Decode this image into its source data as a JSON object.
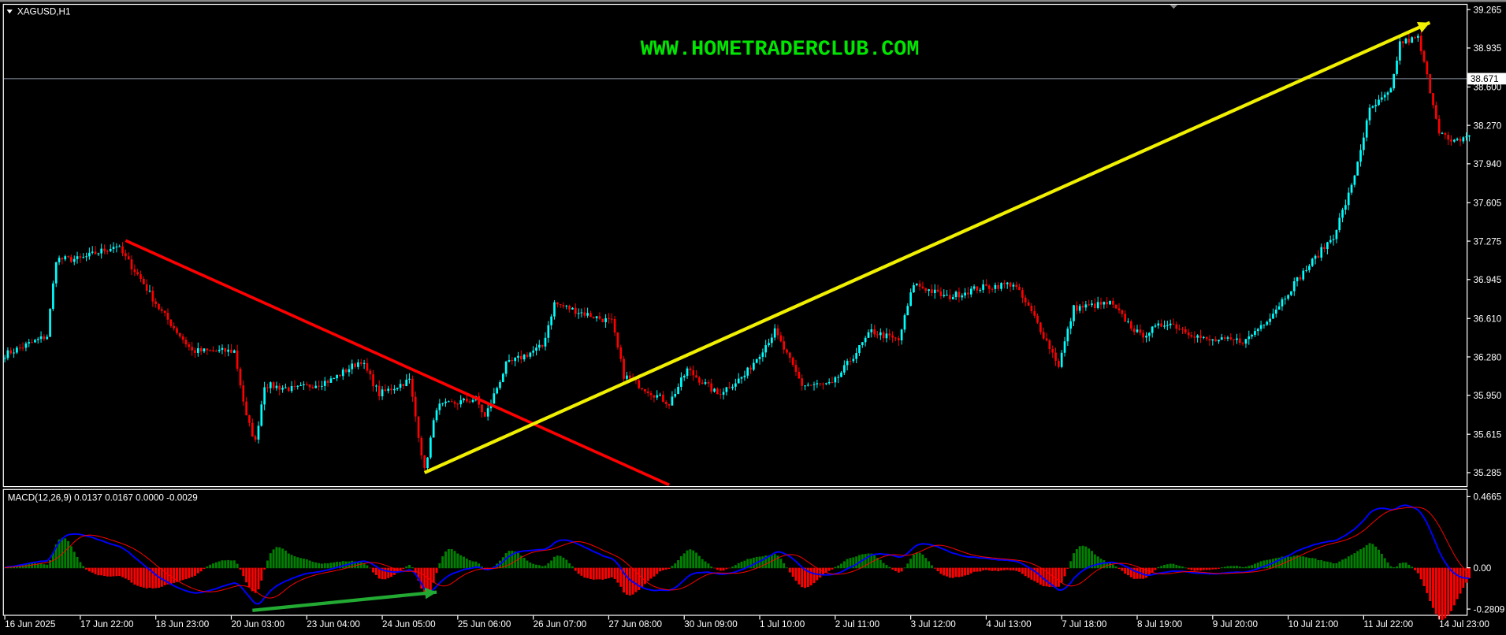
{
  "symbol_label": "XAGUSD,H1",
  "watermark": "WWW.HOMETRADERCLUB.COM",
  "current_price_label": "38.671",
  "macd_label": "MACD(12,26,9) 0.0137 0.0167 0.0000 -0.0029",
  "colors": {
    "background": "#000000",
    "bull": "#00ffff",
    "bear": "#ff0000",
    "macd_line": "#0000ff",
    "signal_line": "#ff0000",
    "hist_pos": "#008000",
    "hist_neg": "#ff0000",
    "downtrend": "#ff0000",
    "uptrend": "#f0f000",
    "macd_arrow": "#22aa33",
    "watermark": "#00e600"
  },
  "chart_data": [
    {
      "type": "candlestick",
      "title": "XAGUSD,H1",
      "ylim": [
        35.285,
        39.265
      ],
      "y_ticks": [
        "39.265",
        "38.935",
        "38.600",
        "38.270",
        "37.940",
        "37.605",
        "37.275",
        "36.945",
        "36.610",
        "36.280",
        "35.950",
        "35.615",
        "35.285"
      ],
      "x_ticks": [
        "16 Jun 2025",
        "17 Jun 22:00",
        "18 Jun 23:00",
        "20 Jun 03:00",
        "23 Jun 04:00",
        "24 Jun 05:00",
        "25 Jun 06:00",
        "26 Jun 07:00",
        "27 Jun 08:00",
        "30 Jun 09:00",
        "1 Jul 10:00",
        "2 Jul 11:00",
        "3 Jul 12:00",
        "4 Jul 13:00",
        "7 Jul 18:00",
        "8 Jul 19:00",
        "9 Jul 20:00",
        "10 Jul 21:00",
        "11 Jul 22:00",
        "14 Jul 23:00"
      ],
      "bars_per_tick": 25,
      "current_price": 38.671,
      "close_path": [
        [
          0,
          36.3
        ],
        [
          14,
          36.46
        ],
        [
          17,
          37.12
        ],
        [
          25,
          37.12
        ],
        [
          37,
          37.24
        ],
        [
          45,
          36.95
        ],
        [
          51,
          36.7
        ],
        [
          62,
          36.33
        ],
        [
          76,
          36.33
        ],
        [
          80,
          35.76
        ],
        [
          83,
          35.55
        ],
        [
          86,
          36.04
        ],
        [
          96,
          36.0
        ],
        [
          108,
          36.08
        ],
        [
          118,
          36.25
        ],
        [
          124,
          35.96
        ],
        [
          134,
          36.08
        ],
        [
          139,
          35.3
        ],
        [
          143,
          35.85
        ],
        [
          156,
          35.92
        ],
        [
          159,
          35.76
        ],
        [
          166,
          36.21
        ],
        [
          178,
          36.37
        ],
        [
          182,
          36.74
        ],
        [
          191,
          36.66
        ],
        [
          201,
          36.58
        ],
        [
          205,
          36.12
        ],
        [
          210,
          36.04
        ],
        [
          220,
          35.88
        ],
        [
          226,
          36.17
        ],
        [
          236,
          35.96
        ],
        [
          245,
          36.12
        ],
        [
          255,
          36.5
        ],
        [
          264,
          36.04
        ],
        [
          274,
          36.04
        ],
        [
          287,
          36.5
        ],
        [
          296,
          36.42
        ],
        [
          301,
          36.91
        ],
        [
          312,
          36.79
        ],
        [
          322,
          36.87
        ],
        [
          334,
          36.91
        ],
        [
          341,
          36.62
        ],
        [
          349,
          36.21
        ],
        [
          354,
          36.7
        ],
        [
          366,
          36.74
        ],
        [
          376,
          36.46
        ],
        [
          385,
          36.58
        ],
        [
          398,
          36.42
        ],
        [
          411,
          36.42
        ],
        [
          420,
          36.66
        ],
        [
          427,
          36.91
        ],
        [
          440,
          37.32
        ],
        [
          446,
          37.74
        ],
        [
          452,
          38.4
        ],
        [
          459,
          38.56
        ],
        [
          462,
          38.98
        ],
        [
          468,
          39.02
        ],
        [
          471,
          38.69
        ],
        [
          475,
          38.23
        ],
        [
          479,
          38.11
        ],
        [
          485,
          38.19
        ]
      ],
      "trendlines": [
        {
          "name": "downtrend",
          "color": "#ff0000",
          "from": [
            40,
            37.28
          ],
          "to": [
            220,
            35.18
          ]
        },
        {
          "name": "uptrend-arrow",
          "color": "#f0f000",
          "from": [
            139,
            35.285
          ],
          "to": [
            470,
            39.12
          ]
        }
      ]
    },
    {
      "type": "macd",
      "title": "MACD(12,26,9)",
      "params": [
        12,
        26,
        9
      ],
      "values": {
        "macd": 0.0137,
        "signal": 0.0167,
        "v3": 0.0,
        "hist": -0.0029
      },
      "ylim": [
        -0.2809,
        0.4665
      ],
      "y_ticks": [
        "0.4665",
        "0.00",
        "-0.2809"
      ],
      "annotation": {
        "name": "divergence-arrow",
        "color": "#22aa33",
        "from": [
          82,
          -0.28
        ],
        "to": [
          143,
          -0.16
        ]
      }
    }
  ]
}
